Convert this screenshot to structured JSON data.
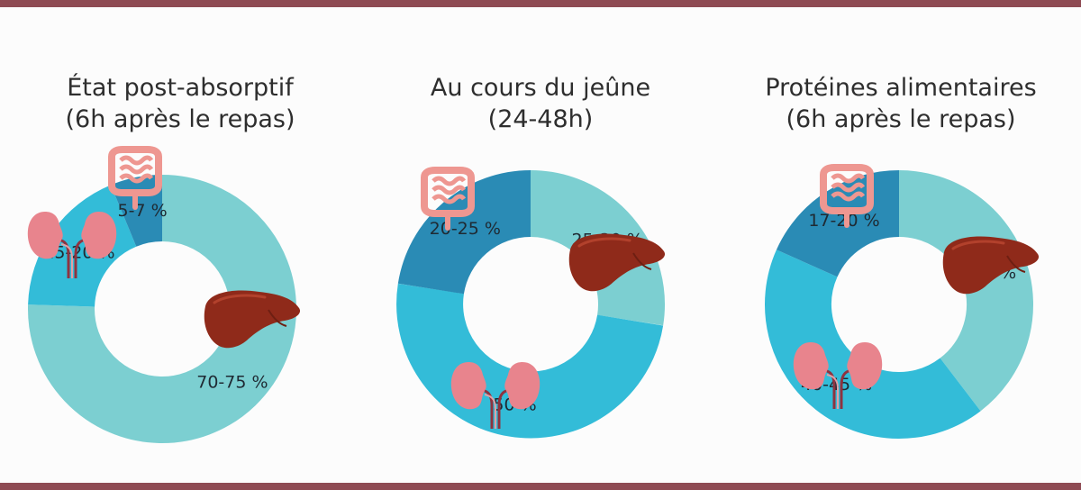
{
  "colors": {
    "rule": "#8e4a53",
    "segment_liver": "#7ccfd1",
    "segment_kidney": "#33bcd8",
    "segment_intestine": "#2a8bb5",
    "liver": "#8f2a1a",
    "kidney": "#e8848d",
    "intestine": "#ee9791"
  },
  "chart_data": [
    {
      "type": "pie",
      "title_lines": [
        "État post-absorptif",
        "(6h après le repas)"
      ],
      "slices": [
        {
          "organ": "liver-icon",
          "label": "70-75 %",
          "value": 72.5
        },
        {
          "organ": "kidney-icon",
          "label": "15-20 %",
          "value": 17.5
        },
        {
          "organ": "intestine-icon",
          "label": "5-7 %",
          "value": 6
        }
      ]
    },
    {
      "type": "pie",
      "title_lines": [
        "Au cours du jeûne",
        "(24-48h)"
      ],
      "slices": [
        {
          "organ": "liver-icon",
          "label": "25-30 %",
          "value": 27.5
        },
        {
          "organ": "kidney-icon",
          "label": "50 %",
          "value": 50
        },
        {
          "organ": "intestine-icon",
          "label": "20-25 %",
          "value": 22.5
        }
      ]
    },
    {
      "type": "pie",
      "title_lines": [
        "Protéines alimentaires",
        "(6h après le repas)"
      ],
      "slices": [
        {
          "organ": "liver-icon",
          "label": "40 %",
          "value": 40
        },
        {
          "organ": "kidney-icon",
          "label": "40-45 %",
          "value": 42.5
        },
        {
          "organ": "intestine-icon",
          "label": "17-20 %",
          "value": 18.5
        }
      ]
    }
  ]
}
